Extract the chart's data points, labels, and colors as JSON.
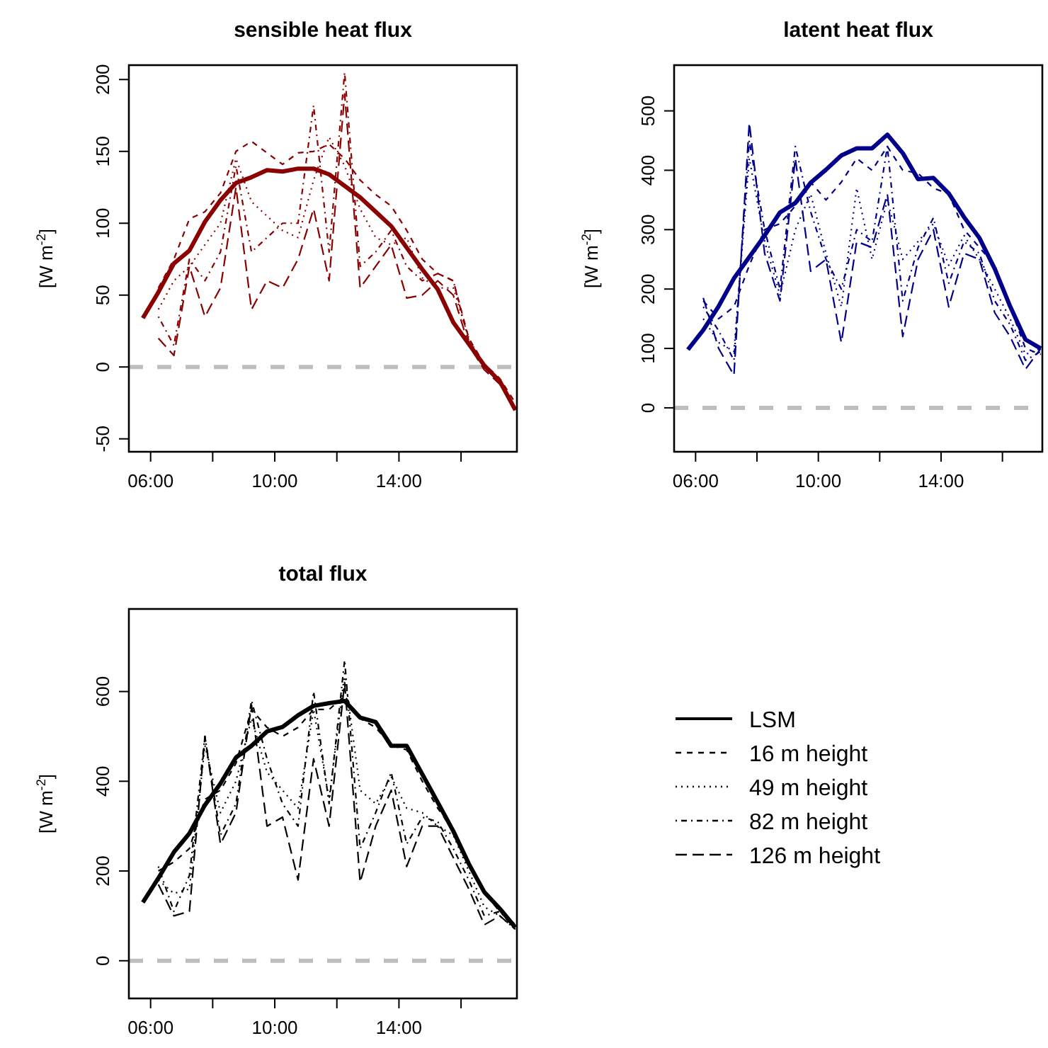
{
  "chart_data": [
    {
      "type": "line",
      "title": "sensible heat flux",
      "ylabel": "[W m$^{-2}$]",
      "x": [
        5.75,
        6.25,
        6.75,
        7.25,
        7.75,
        8.25,
        8.75,
        9.25,
        9.75,
        10.25,
        10.75,
        11.25,
        11.75,
        12.25,
        12.75,
        13.25,
        13.75,
        14.25,
        14.75,
        15.25,
        15.75,
        16.25,
        16.75,
        17.25,
        17.75
      ],
      "xlim": [
        5.3,
        17.8
      ],
      "xticks": [
        {
          "value": 6,
          "label": "06:00"
        },
        {
          "value": 8,
          "label": null
        },
        {
          "value": 10,
          "label": "10:00"
        },
        {
          "value": 12,
          "label": null
        },
        {
          "value": 14,
          "label": "14:00"
        },
        {
          "value": 16,
          "label": null
        }
      ],
      "ylim": [
        -59,
        210
      ],
      "yticks": [
        -50,
        0,
        50,
        100,
        150,
        200
      ],
      "ref_lines": [
        {
          "axis": "y",
          "value": 0,
          "color": "#bebebe",
          "line_style": "dashed"
        }
      ],
      "series": [
        {
          "color": "#8b0000",
          "line_style": "solid",
          "values": [
            34,
            52,
            72,
            81,
            101,
            116,
            128,
            132,
            137,
            136,
            138,
            138,
            134,
            126,
            118,
            108,
            98,
            83,
            68,
            54,
            31,
            16,
            1,
            -10,
            -30
          ]
        },
        {
          "color": "#8b0000",
          "line_style": "dashed",
          "values": [
            null,
            55,
            75,
            103,
            108,
            121,
            150,
            157,
            149,
            141,
            149,
            150,
            155,
            145,
            130,
            120,
            112,
            95,
            75,
            65,
            60,
            20,
            2,
            -8,
            -25
          ]
        },
        {
          "color": "#8b0000",
          "line_style": "dotted",
          "values": [
            null,
            40,
            60,
            70,
            85,
            100,
            145,
            115,
            105,
            95,
            90,
            130,
            160,
            140,
            110,
            90,
            85,
            90,
            62,
            55,
            55,
            20,
            0,
            -10,
            -28
          ]
        },
        {
          "color": "#8b0000",
          "line_style": "dashdot",
          "values": [
            null,
            35,
            15,
            75,
            60,
            80,
            140,
            80,
            90,
            100,
            100,
            182,
            80,
            205,
            70,
            80,
            95,
            70,
            60,
            65,
            60,
            18,
            0,
            -10,
            -28
          ]
        },
        {
          "color": "#8b0000",
          "line_style": "longdash",
          "values": [
            null,
            20,
            8,
            70,
            35,
            55,
            125,
            40,
            60,
            55,
            75,
            110,
            60,
            190,
            55,
            70,
            85,
            48,
            50,
            60,
            50,
            15,
            -2,
            -12,
            -30
          ]
        }
      ]
    },
    {
      "type": "line",
      "title": "latent heat flux",
      "ylabel": "[W m$^{-2}$]",
      "x": [
        5.75,
        6.25,
        6.75,
        7.25,
        7.75,
        8.25,
        8.75,
        9.25,
        9.75,
        10.25,
        10.75,
        11.25,
        11.75,
        12.25,
        12.75,
        13.25,
        13.75,
        14.25,
        14.75,
        15.25,
        15.75,
        16.25,
        16.75,
        17.25
      ],
      "xlim": [
        5.3,
        17.3
      ],
      "xticks": [
        {
          "value": 6,
          "label": "06:00"
        },
        {
          "value": 8,
          "label": null
        },
        {
          "value": 10,
          "label": "10:00"
        },
        {
          "value": 12,
          "label": null
        },
        {
          "value": 14,
          "label": "14:00"
        },
        {
          "value": 16,
          "label": null
        }
      ],
      "ylim": [
        -74,
        577
      ],
      "yticks": [
        0,
        100,
        200,
        300,
        400,
        500
      ],
      "ref_lines": [
        {
          "axis": "y",
          "value": 0,
          "color": "#bebebe",
          "line_style": "dashed"
        }
      ],
      "series": [
        {
          "color": "#00008b",
          "line_style": "solid",
          "values": [
            98,
            131,
            171,
            218,
            254,
            290,
            329,
            345,
            379,
            401,
            425,
            437,
            437,
            460,
            429,
            385,
            387,
            361,
            321,
            286,
            234,
            171,
            115,
            100
          ]
        },
        {
          "color": "#00008b",
          "line_style": "dashed",
          "values": [
            null,
            180,
            150,
            170,
            240,
            300,
            310,
            340,
            380,
            350,
            380,
            420,
            400,
            440,
            400,
            395,
            370,
            360,
            300,
            270,
            240,
            170,
            100,
            90
          ]
        },
        {
          "color": "#00008b",
          "line_style": "dotted",
          "values": [
            null,
            150,
            110,
            95,
            420,
            280,
            190,
            300,
            360,
            260,
            170,
            370,
            250,
            350,
            250,
            280,
            310,
            240,
            290,
            250,
            200,
            150,
            90,
            100
          ]
        },
        {
          "color": "#00008b",
          "line_style": "dashdot",
          "values": [
            null,
            170,
            130,
            80,
            450,
            300,
            200,
            440,
            330,
            250,
            200,
            300,
            280,
            440,
            180,
            270,
            320,
            210,
            280,
            260,
            180,
            140,
            80,
            95
          ]
        },
        {
          "color": "#00008b",
          "line_style": "longdash",
          "values": [
            null,
            185,
            100,
            55,
            480,
            260,
            180,
            420,
            230,
            250,
            110,
            280,
            270,
            360,
            120,
            250,
            300,
            170,
            260,
            250,
            160,
            120,
            65,
            100
          ]
        }
      ]
    },
    {
      "type": "line",
      "title": "total flux",
      "ylabel": "[W m$^{-2}$]",
      "legend": "right",
      "x": [
        5.75,
        6.25,
        6.75,
        7.25,
        7.75,
        8.25,
        8.75,
        9.25,
        9.75,
        10.25,
        10.75,
        11.25,
        11.75,
        12.25,
        12.75,
        13.25,
        13.75,
        14.25,
        14.75,
        15.25,
        15.75,
        16.25,
        16.75,
        17.25,
        17.75
      ],
      "xlim": [
        5.3,
        17.8
      ],
      "xticks": [
        {
          "value": 6,
          "label": "06:00"
        },
        {
          "value": 8,
          "label": null
        },
        {
          "value": 10,
          "label": "10:00"
        },
        {
          "value": 12,
          "label": null
        },
        {
          "value": 14,
          "label": "14:00"
        },
        {
          "value": 16,
          "label": null
        }
      ],
      "ylim": [
        -84,
        784
      ],
      "yticks": [
        0,
        200,
        400,
        600
      ],
      "ref_lines": [
        {
          "axis": "y",
          "value": 0,
          "color": "#bebebe",
          "line_style": "dashed"
        }
      ],
      "series": [
        {
          "name": "LSM",
          "color": "#000000",
          "line_style": "solid",
          "values": [
            130,
            184,
            242,
            284,
            347,
            395,
            453,
            479,
            511,
            521,
            547,
            568,
            574,
            579,
            542,
            532,
            479,
            479,
            416,
            353,
            289,
            216,
            153,
            116,
            74
          ]
        },
        {
          "name": "16 m height",
          "color": "#000000",
          "line_style": "dashed",
          "values": [
            null,
            200,
            220,
            250,
            360,
            380,
            440,
            560,
            520,
            500,
            520,
            560,
            560,
            590,
            540,
            520,
            480,
            470,
            400,
            340,
            290,
            220,
            150,
            110,
            80
          ]
        },
        {
          "name": "49 m height",
          "color": "#000000",
          "line_style": "dotted",
          "values": [
            null,
            180,
            150,
            160,
            480,
            330,
            400,
            540,
            420,
            380,
            340,
            560,
            360,
            640,
            380,
            350,
            410,
            340,
            330,
            300,
            280,
            200,
            120,
            100,
            70
          ]
        },
        {
          "name": "82 m height",
          "color": "#000000",
          "line_style": "dashdot",
          "values": [
            null,
            210,
            110,
            190,
            500,
            280,
            350,
            580,
            450,
            350,
            300,
            600,
            350,
            670,
            250,
            330,
            420,
            260,
            320,
            310,
            250,
            180,
            100,
            110,
            70
          ]
        },
        {
          "name": "126 m height",
          "color": "#000000",
          "line_style": "longdash",
          "values": [
            null,
            170,
            100,
            110,
            500,
            260,
            330,
            570,
            300,
            320,
            180,
            450,
            300,
            620,
            175,
            300,
            380,
            210,
            300,
            300,
            230,
            160,
            80,
            100,
            70
          ]
        }
      ]
    }
  ]
}
